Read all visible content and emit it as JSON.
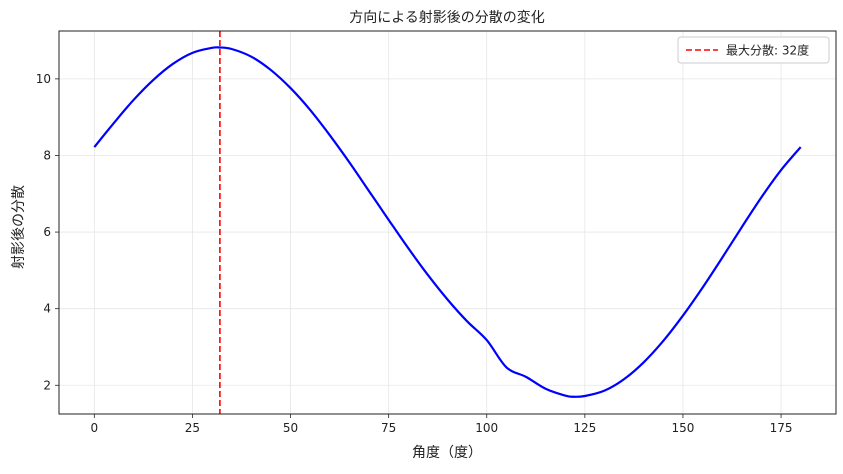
{
  "chart_data": {
    "type": "line",
    "title": "方向による射影後の分散の変化",
    "xlabel": "角度（度）",
    "ylabel": "射影後の分散",
    "xlim": [
      -9,
      189
    ],
    "ylim": [
      1.25,
      11.25
    ],
    "xticks": [
      0,
      25,
      50,
      75,
      100,
      125,
      150,
      175
    ],
    "yticks": [
      2,
      4,
      6,
      8,
      10
    ],
    "grid": true,
    "legend_position": "upper right",
    "series": [
      {
        "color": "#0000ff",
        "x": [
          0,
          5,
          10,
          15,
          20,
          25,
          30,
          32,
          35,
          40,
          45,
          50,
          55,
          60,
          65,
          70,
          75,
          80,
          85,
          90,
          95,
          100,
          105,
          110,
          115,
          120,
          122,
          125,
          130,
          135,
          140,
          145,
          150,
          155,
          160,
          165,
          170,
          175,
          180
        ],
        "y": [
          8.22,
          8.85,
          9.45,
          9.97,
          10.39,
          10.68,
          10.81,
          10.82,
          10.78,
          10.58,
          10.23,
          9.76,
          9.19,
          8.53,
          7.82,
          7.07,
          6.32,
          5.58,
          4.88,
          4.24,
          3.67,
          3.18,
          2.47,
          2.22,
          1.91,
          1.73,
          1.7,
          1.72,
          1.86,
          2.16,
          2.6,
          3.16,
          3.82,
          4.55,
          5.33,
          6.13,
          6.91,
          7.62,
          8.22
        ]
      }
    ],
    "reference_lines": [
      {
        "orientation": "vertical",
        "x": 32,
        "color": "#ff0000",
        "style": "dashed",
        "name": "最大分散: 32度"
      }
    ]
  }
}
